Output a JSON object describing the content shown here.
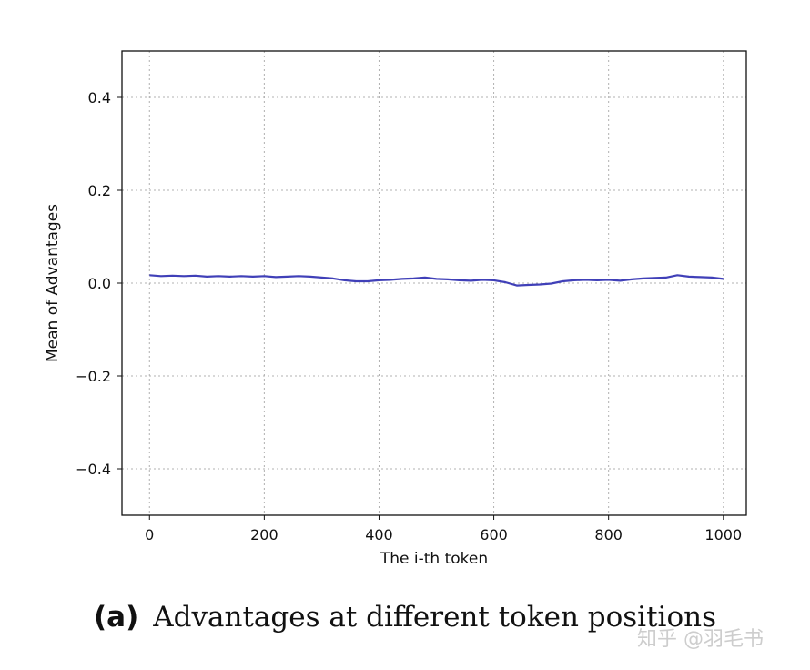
{
  "chart_data": {
    "type": "line",
    "title": "",
    "xlabel": "The i-th token",
    "ylabel": "Mean of Advantages",
    "xlim": [
      -48,
      1040
    ],
    "ylim": [
      -0.5,
      0.5
    ],
    "xticks": [
      0,
      200,
      400,
      600,
      800,
      1000
    ],
    "yticks": [
      -0.4,
      -0.2,
      0.0,
      0.2,
      0.4
    ],
    "xtick_labels": [
      "0",
      "200",
      "400",
      "600",
      "800",
      "1000"
    ],
    "ytick_labels": [
      "−0.4",
      "−0.2",
      "0.0",
      "0.2",
      "0.4"
    ],
    "grid": true,
    "series": [
      {
        "color": "#4040b8",
        "x": [
          0,
          20,
          40,
          60,
          80,
          100,
          120,
          140,
          160,
          180,
          200,
          220,
          240,
          260,
          280,
          300,
          320,
          340,
          360,
          380,
          400,
          420,
          440,
          460,
          480,
          500,
          520,
          540,
          560,
          580,
          600,
          620,
          640,
          660,
          680,
          700,
          720,
          740,
          760,
          780,
          800,
          820,
          840,
          860,
          880,
          900,
          920,
          940,
          960,
          980,
          1000
        ],
        "y": [
          0.017,
          0.015,
          0.016,
          0.015,
          0.016,
          0.014,
          0.015,
          0.014,
          0.015,
          0.014,
          0.015,
          0.013,
          0.014,
          0.015,
          0.014,
          0.012,
          0.01,
          0.006,
          0.004,
          0.004,
          0.006,
          0.007,
          0.009,
          0.01,
          0.012,
          0.009,
          0.008,
          0.006,
          0.005,
          0.007,
          0.006,
          0.002,
          -0.005,
          -0.004,
          -0.003,
          -0.001,
          0.004,
          0.006,
          0.007,
          0.006,
          0.007,
          0.005,
          0.008,
          0.01,
          0.011,
          0.012,
          0.017,
          0.014,
          0.013,
          0.012,
          0.009
        ]
      }
    ]
  },
  "caption": {
    "tag": "(a)",
    "text": "Advantages at different token positions"
  },
  "watermark": "知乎 @羽毛书"
}
